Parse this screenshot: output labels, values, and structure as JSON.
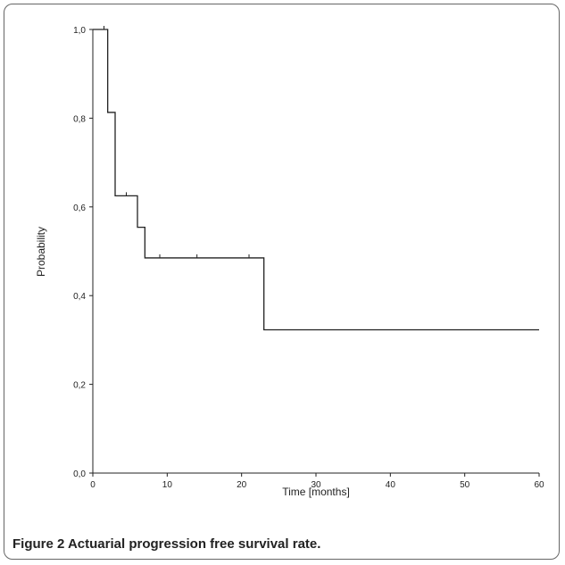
{
  "chart_data": {
    "type": "line",
    "title": "",
    "xlabel": "Time [months]",
    "ylabel": "Probability",
    "xlim": [
      0,
      60
    ],
    "ylim": [
      0,
      1
    ],
    "xticks": [
      0,
      10,
      20,
      30,
      40,
      50,
      60
    ],
    "yticks": [
      0,
      0.2,
      0.4,
      0.6,
      0.8,
      1.0
    ],
    "xtick_labels": [
      "0",
      "10",
      "20",
      "30",
      "40",
      "50",
      "60"
    ],
    "ytick_labels": [
      "0,0",
      "0,2",
      "0,4",
      "0,6",
      "0,8",
      "1,0"
    ],
    "grid": false,
    "series": [
      {
        "step": true,
        "x": [
          0,
          2,
          3,
          6,
          7,
          23,
          60
        ],
        "y": [
          1.0,
          0.813,
          0.625,
          0.554,
          0.485,
          0.323,
          0.323
        ]
      }
    ],
    "censored": [
      {
        "x": 1.5,
        "y": 1.0
      },
      {
        "x": 4.5,
        "y": 0.625
      },
      {
        "x": 9,
        "y": 0.485
      },
      {
        "x": 14,
        "y": 0.485
      },
      {
        "x": 21,
        "y": 0.485
      }
    ],
    "line_color": "#222222"
  },
  "caption": {
    "number": "Figure 2",
    "text": " Actuarial progression free survival rate."
  }
}
